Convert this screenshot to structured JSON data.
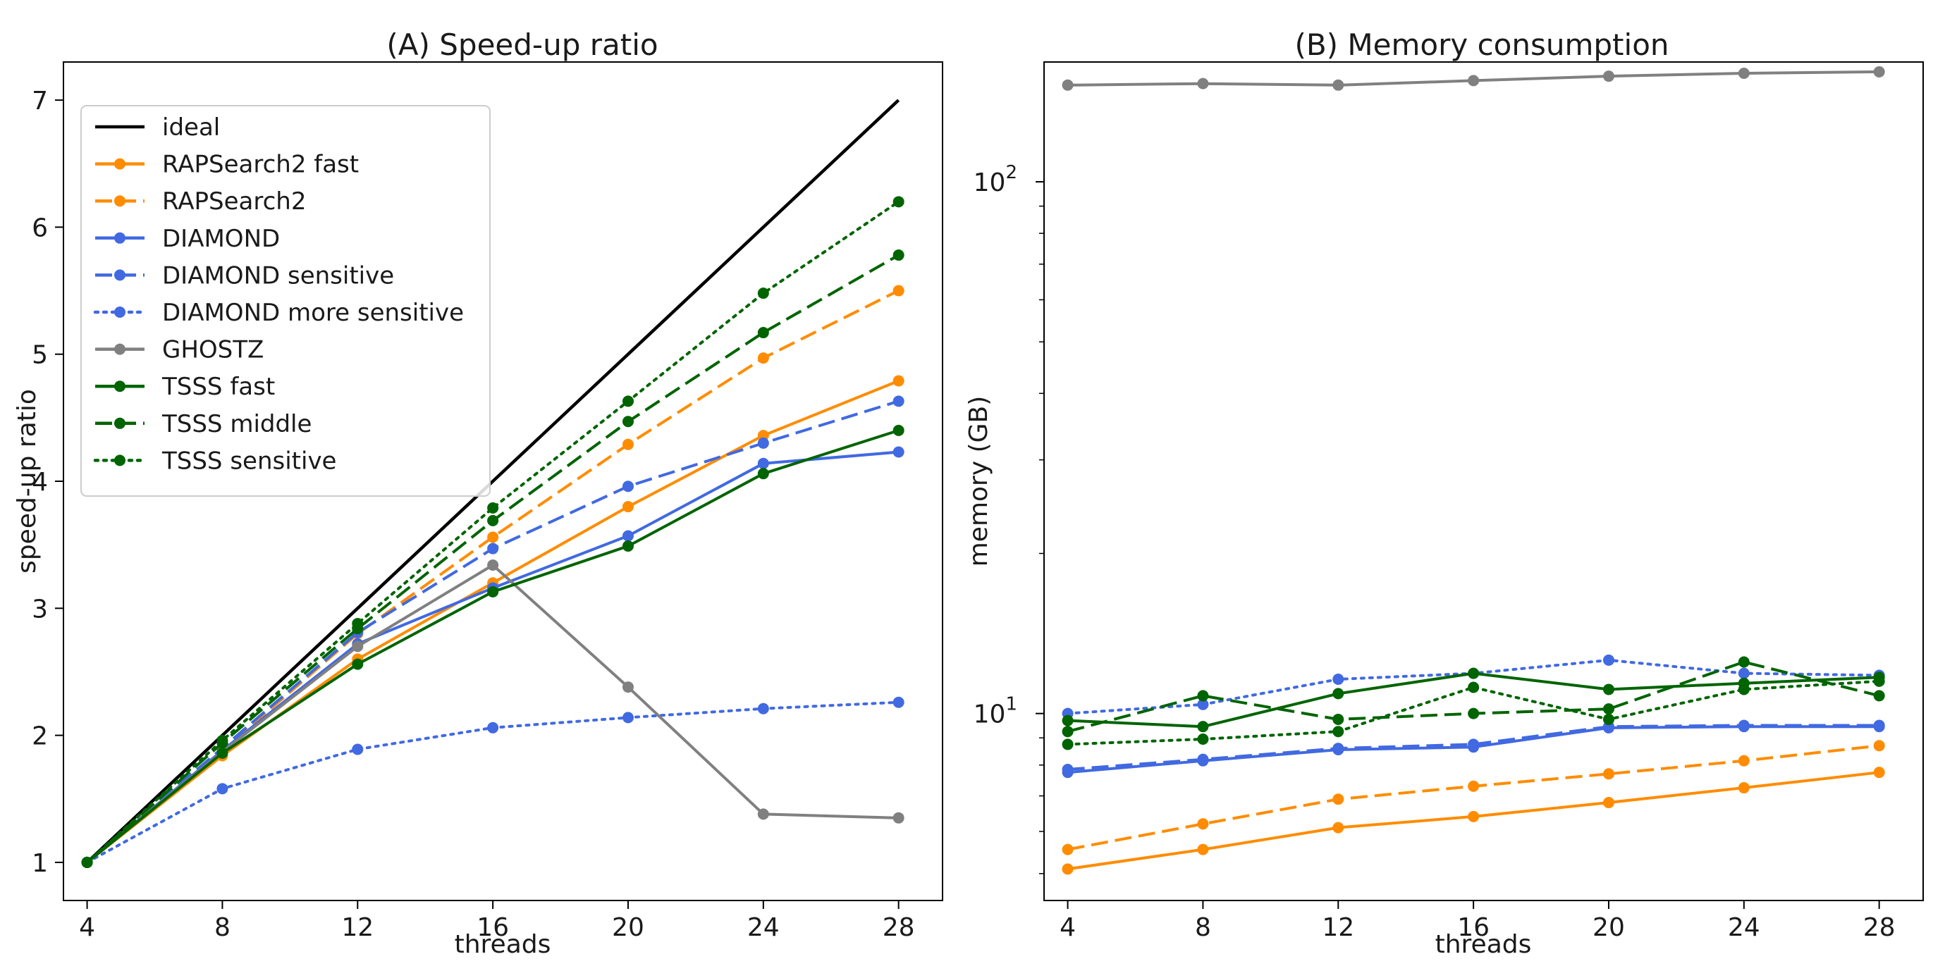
{
  "chart_data": [
    {
      "type": "line",
      "title": "(A) Speed-up ratio",
      "xlabel": "threads",
      "ylabel": "speed-up ratio",
      "x": [
        4,
        8,
        12,
        16,
        20,
        24,
        28
      ],
      "xticks": [
        "4",
        "8",
        "12",
        "16",
        "20",
        "24",
        "28"
      ],
      "yticks": [
        "1",
        "2",
        "3",
        "4",
        "5",
        "6",
        "7"
      ],
      "xlim": [
        3.3,
        29.3
      ],
      "ylim": [
        0.7,
        7.3
      ],
      "yscale": "linear",
      "legend": "upper-left",
      "series": [
        {
          "name": "ideal",
          "color": "#000000",
          "style": "solid",
          "markers": false,
          "values": [
            1,
            2,
            3,
            4,
            5,
            6,
            7
          ]
        },
        {
          "name": "RAPSearch2 fast",
          "color": "#ff8c00",
          "style": "solid",
          "markers": true,
          "values": [
            1,
            1.84,
            2.6,
            3.2,
            3.8,
            4.36,
            4.79
          ]
        },
        {
          "name": "RAPSearch2",
          "color": "#ff8c00",
          "style": "dashed",
          "markers": true,
          "values": [
            1,
            1.88,
            2.8,
            3.56,
            4.29,
            4.97,
            5.5
          ]
        },
        {
          "name": "DIAMOND",
          "color": "#4169e1",
          "style": "solid",
          "markers": true,
          "values": [
            1,
            1.88,
            2.72,
            3.16,
            3.57,
            4.14,
            4.23
          ]
        },
        {
          "name": "DIAMOND sensitive",
          "color": "#4169e1",
          "style": "dashed",
          "markers": true,
          "values": [
            1,
            1.9,
            2.81,
            3.47,
            3.96,
            4.3,
            4.63
          ]
        },
        {
          "name": "DIAMOND more sensitive",
          "color": "#4169e1",
          "style": "dotted",
          "markers": true,
          "values": [
            1,
            1.58,
            1.89,
            2.06,
            2.14,
            2.21,
            2.26
          ]
        },
        {
          "name": "GHOSTZ",
          "color": "#808080",
          "style": "solid",
          "markers": true,
          "values": [
            1,
            1.87,
            2.7,
            3.34,
            2.38,
            1.38,
            1.35
          ]
        },
        {
          "name": "TSSS fast",
          "color": "#006400",
          "style": "solid",
          "markers": true,
          "values": [
            1,
            1.86,
            2.56,
            3.13,
            3.49,
            4.06,
            4.4
          ]
        },
        {
          "name": "TSSS middle",
          "color": "#006400",
          "style": "dashed",
          "markers": true,
          "values": [
            1,
            1.94,
            2.84,
            3.69,
            4.47,
            5.17,
            5.78
          ]
        },
        {
          "name": "TSSS sensitive",
          "color": "#006400",
          "style": "dotted",
          "markers": true,
          "values": [
            1,
            1.96,
            2.88,
            3.79,
            4.63,
            5.48,
            6.2
          ]
        }
      ]
    },
    {
      "type": "line",
      "title": "(B) Memory consumption",
      "xlabel": "threads",
      "ylabel": "memory (GB)",
      "x": [
        4,
        8,
        12,
        16,
        20,
        24,
        28
      ],
      "xticks": [
        "4",
        "8",
        "12",
        "16",
        "20",
        "24",
        "28"
      ],
      "yticks": [
        {
          "value": 10,
          "base": "10",
          "exp": "1"
        },
        {
          "value": 100,
          "base": "10",
          "exp": "2"
        }
      ],
      "xlim": [
        3.3,
        29.3
      ],
      "ylim": [
        4.45,
        168
      ],
      "yscale": "log",
      "series": [
        {
          "name": "RAPSearch2 fast",
          "color": "#ff8c00",
          "style": "solid",
          "markers": true,
          "values": [
            5.1,
            5.55,
            6.1,
            6.4,
            6.8,
            7.25,
            7.75
          ]
        },
        {
          "name": "RAPSearch2",
          "color": "#ff8c00",
          "style": "dashed",
          "markers": true,
          "values": [
            5.55,
            6.2,
            6.9,
            7.3,
            7.7,
            8.15,
            8.7
          ]
        },
        {
          "name": "DIAMOND",
          "color": "#4169e1",
          "style": "solid",
          "markers": true,
          "values": [
            7.75,
            8.15,
            8.55,
            8.65,
            9.4,
            9.45,
            9.45
          ]
        },
        {
          "name": "DIAMOND sensitive",
          "color": "#4169e1",
          "style": "dashed",
          "markers": true,
          "values": [
            7.85,
            8.2,
            8.6,
            8.75,
            9.45,
            9.5,
            9.5
          ]
        },
        {
          "name": "DIAMOND more sensitive",
          "color": "#4169e1",
          "style": "dotted",
          "markers": true,
          "values": [
            10.0,
            10.4,
            11.6,
            11.9,
            12.6,
            11.9,
            11.8
          ]
        },
        {
          "name": "GHOSTZ",
          "color": "#808080",
          "style": "solid",
          "markers": true,
          "values": [
            152,
            153,
            152,
            155,
            158,
            160,
            161
          ]
        },
        {
          "name": "TSSS fast",
          "color": "#006400",
          "style": "solid",
          "markers": true,
          "values": [
            9.7,
            9.45,
            10.9,
            11.9,
            11.1,
            11.4,
            11.7
          ]
        },
        {
          "name": "TSSS middle",
          "color": "#006400",
          "style": "dashed",
          "markers": true,
          "values": [
            9.25,
            10.8,
            9.75,
            10.0,
            10.2,
            12.5,
            10.8
          ]
        },
        {
          "name": "TSSS sensitive",
          "color": "#006400",
          "style": "dotted",
          "markers": true,
          "values": [
            8.75,
            8.95,
            9.25,
            11.2,
            9.75,
            11.1,
            11.5
          ]
        }
      ]
    }
  ]
}
